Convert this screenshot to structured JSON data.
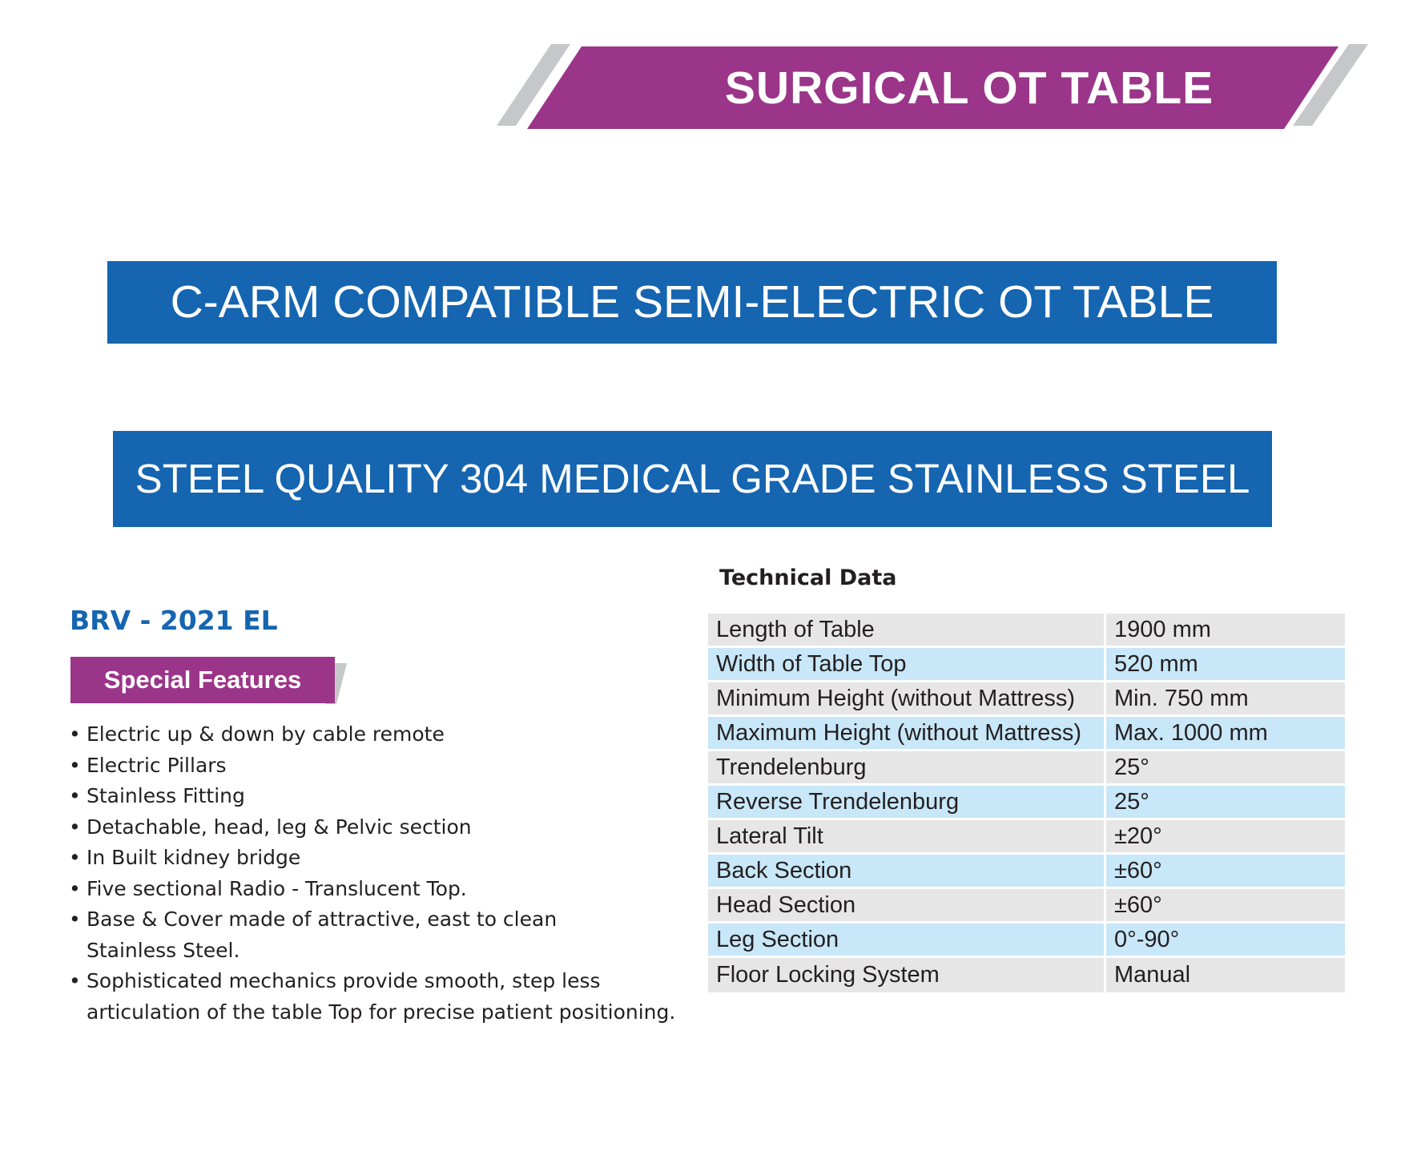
{
  "header": {
    "title": "SURGICAL OT TABLE"
  },
  "product": {
    "name": "C-ARM COMPATIBLE SEMI-ELECTRIC OT TABLE",
    "steel_quality": "STEEL QUALITY 304 MEDICAL GRADE STAINLESS STEEL",
    "model": "BRV - 2021 EL"
  },
  "special_features": {
    "label": "Special Features",
    "items": [
      [
        "Electric up & down by cable remote"
      ],
      [
        "Electric Pillars"
      ],
      [
        "Stainless Fitting"
      ],
      [
        "Detachable, head, leg & Pelvic section"
      ],
      [
        "In Built kidney bridge"
      ],
      [
        "Five sectional Radio - Translucent Top."
      ],
      [
        "Base & Cover made of attractive, east to clean",
        "Stainless Steel."
      ],
      [
        "Sophisticated mechanics provide smooth, step less",
        "articulation of the table Top for precise patient positioning."
      ]
    ]
  },
  "technical_data": {
    "title": "Technical Data",
    "rows": [
      [
        "Length of Table",
        "1900 mm"
      ],
      [
        "Width of Table Top",
        "520 mm"
      ],
      [
        "Minimum Height (without Mattress)",
        "Min. 750 mm"
      ],
      [
        "Maximum Height (without Mattress)",
        "Max. 1000 mm"
      ],
      [
        "Trendelenburg",
        "25°"
      ],
      [
        "Reverse Trendelenburg",
        "25°"
      ],
      [
        "Lateral Tilt",
        "±20°"
      ],
      [
        "Back Section",
        "±60°"
      ],
      [
        "Head Section",
        "±60°"
      ],
      [
        "Leg Section",
        "0°-90°"
      ],
      [
        "Floor Locking System",
        "Manual"
      ]
    ]
  },
  "colors": {
    "purple": "#9b3589",
    "blue": "#1565b0",
    "gray_stripe": "#c6c7c9",
    "row_gray": "#e6e6e7",
    "row_blue": "#c8e7f8"
  }
}
